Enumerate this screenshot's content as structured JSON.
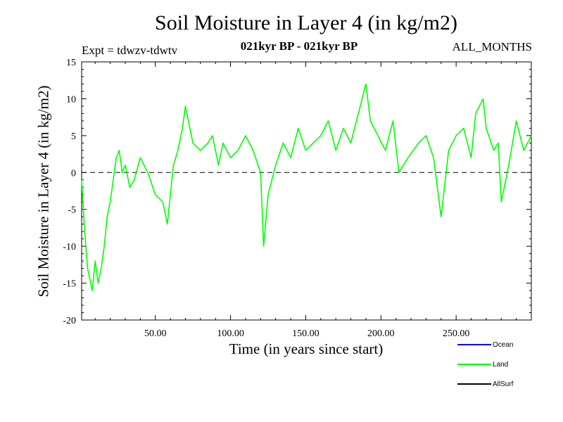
{
  "figure": {
    "title": "Soil Moisture in Layer 4 (in kg/m2)",
    "expt": "Expt = tdwzv-tdwtv",
    "period": "021kyr BP - 021kyr BP",
    "months": "ALL_MONTHS"
  },
  "chart_data": {
    "type": "line",
    "title": "Soil Moisture in Layer 4 (in kg/m2)",
    "xlabel": "Time (in years since start)",
    "ylabel": "Soil Moisture in Layer 4 (in kg/m2)",
    "xlim": [
      1,
      300
    ],
    "ylim": [
      -20,
      15
    ],
    "x_ticks": [
      50,
      100,
      150,
      200,
      250
    ],
    "x_tick_labels": [
      "50.00",
      "100.00",
      "150.00",
      "200.00",
      "250.00"
    ],
    "y_ticks": [
      -20,
      -15,
      -10,
      -5,
      0,
      5,
      10,
      15
    ],
    "y_tick_labels": [
      "-20",
      "-15",
      "-10",
      "-5",
      "0",
      "5",
      "10",
      "15"
    ],
    "zero_line": "dashed",
    "grid": false,
    "legend_position": "bottom-right",
    "legend": [
      {
        "name": "Ocean",
        "color": "#0000ff"
      },
      {
        "name": "Land",
        "color": "#00ff00"
      },
      {
        "name": "AllSurf",
        "color": "#000000"
      }
    ],
    "series": [
      {
        "name": "Land",
        "color": "#00ff00",
        "x": [
          1,
          3,
          5,
          8,
          10,
          12,
          14,
          16,
          18,
          20,
          22,
          24,
          26,
          28,
          30,
          33,
          36,
          40,
          45,
          50,
          55,
          58,
          62,
          65,
          68,
          70,
          75,
          80,
          85,
          88,
          92,
          95,
          100,
          105,
          110,
          115,
          120,
          122,
          125,
          130,
          135,
          140,
          145,
          150,
          155,
          160,
          165,
          170,
          175,
          180,
          185,
          190,
          193,
          198,
          203,
          208,
          212,
          218,
          225,
          230,
          235,
          240,
          245,
          250,
          255,
          260,
          263,
          268,
          270,
          275,
          278,
          280,
          285,
          290,
          295,
          300
        ],
        "y": [
          -1,
          -8,
          -13,
          -16,
          -12,
          -15,
          -13,
          -10,
          -6,
          -4,
          -1,
          2,
          3,
          0,
          1,
          -2,
          -1,
          2,
          0,
          -3,
          -4,
          -7,
          1,
          3,
          6,
          9,
          4,
          3,
          4,
          5,
          1,
          4,
          2,
          3,
          5,
          3,
          0,
          -10,
          -3,
          1,
          4,
          2,
          6,
          3,
          4,
          5,
          7,
          3,
          6,
          4,
          8,
          12,
          7,
          5,
          3,
          7,
          0,
          2,
          4,
          5,
          2,
          -6,
          3,
          5,
          6,
          2,
          8,
          10,
          6,
          3,
          4,
          -4,
          1,
          7,
          3,
          5
        ]
      }
    ]
  }
}
